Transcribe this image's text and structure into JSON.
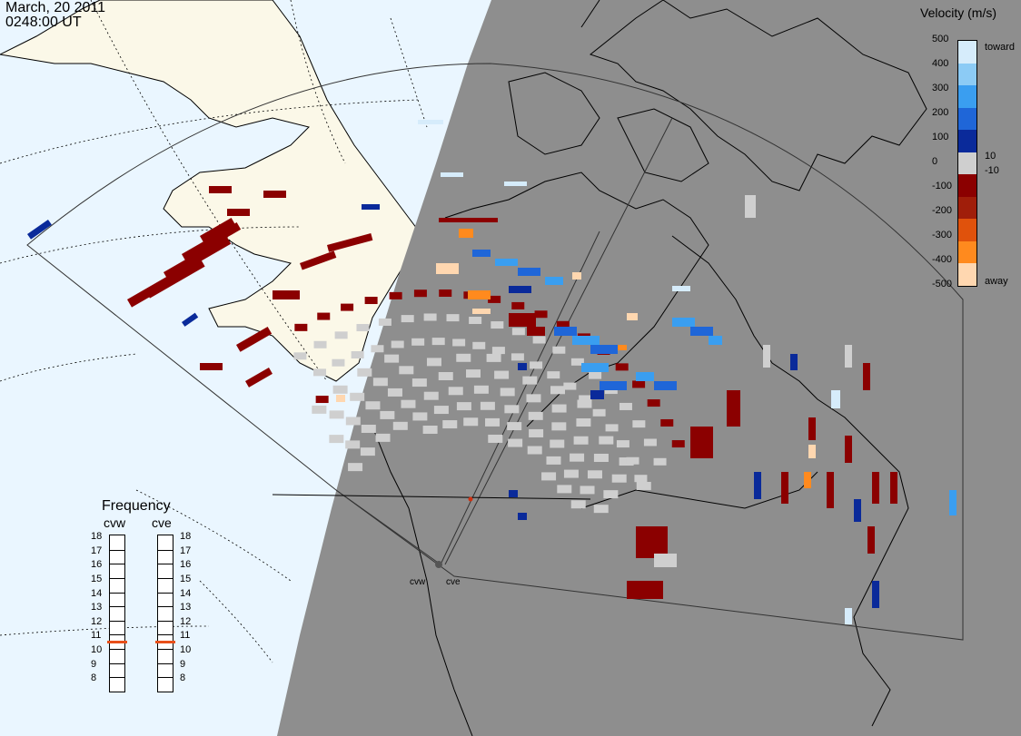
{
  "header": {
    "date": "March, 20 2011",
    "time": "0248:00 UT"
  },
  "legend": {
    "title": "Velocity (m/s)",
    "labels": [
      "500",
      "400",
      "300",
      "200",
      "100",
      "0",
      "-100",
      "-200",
      "-300",
      "-400",
      "-500"
    ],
    "toward": "toward",
    "away": "away",
    "pos10": "10",
    "neg10": "-10",
    "colors": [
      "#d6ecfb",
      "#8ccbf5",
      "#3a9ef0",
      "#1f66d8",
      "#0a2a9a",
      "#cfcfcf",
      "#8b0000",
      "#a01e0a",
      "#e0520c",
      "#ff8a1e",
      "#ffd7b0"
    ]
  },
  "frequency": {
    "title": "Frequency",
    "radars": [
      {
        "name": "cvw",
        "value": 11
      },
      {
        "name": "cve",
        "value": 11
      }
    ],
    "levels": [
      "18",
      "17",
      "16",
      "15",
      "14",
      "13",
      "12",
      "11",
      "10",
      "9",
      "8"
    ],
    "marker_color": "#e8501a"
  },
  "sites": [
    {
      "name": "cvw"
    },
    {
      "name": "cve"
    }
  ],
  "colors": {
    "ocean": "#eaf6ff",
    "land": "#fbf8e8",
    "night": "#8e8e8e",
    "ground_scatter": "#cfcfcf"
  }
}
